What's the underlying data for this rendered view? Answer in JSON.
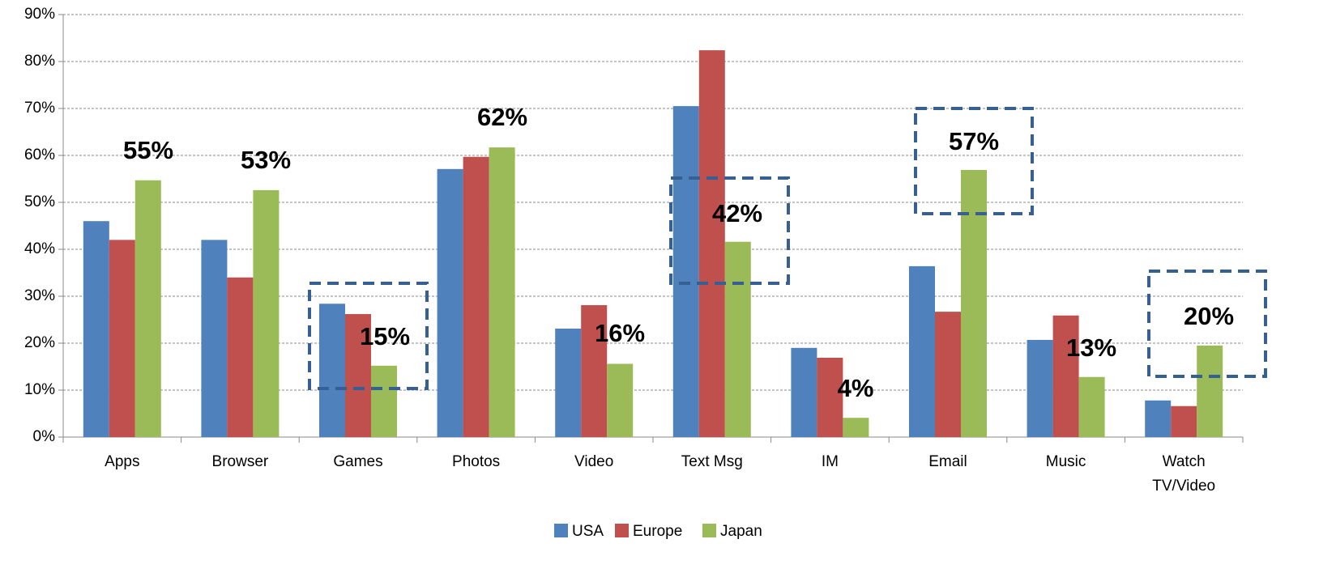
{
  "chart_data": {
    "type": "bar",
    "categories": [
      "Apps",
      "Browser",
      "Games",
      "Photos",
      "Video",
      "Text Msg",
      "IM",
      "Email",
      "Music",
      "Watch TV/Video"
    ],
    "series": [
      {
        "name": "USA",
        "color": "#4f81bd",
        "values": [
          46,
          42,
          28.4,
          57.1,
          23.1,
          70.5,
          19,
          36.4,
          20.7,
          7.8
        ]
      },
      {
        "name": "Europe",
        "color": "#c0504d",
        "values": [
          42,
          34,
          26.2,
          59.7,
          28.1,
          82.4,
          16.9,
          26.7,
          25.9,
          6.6
        ]
      },
      {
        "name": "Japan",
        "color": "#9bbb59",
        "values": [
          54.7,
          52.6,
          15.2,
          61.7,
          15.6,
          41.6,
          4.1,
          56.9,
          12.8,
          19.5
        ],
        "value_labels": [
          "55%",
          "53%",
          "15%",
          "62%",
          "16%",
          "42%",
          "4%",
          "57%",
          "13%",
          "20%"
        ]
      }
    ],
    "ylim": [
      0,
      90
    ],
    "yticks": [
      {
        "value": 0,
        "label": "0%"
      },
      {
        "value": 10,
        "label": "10%"
      },
      {
        "value": 20,
        "label": "20%"
      },
      {
        "value": 30,
        "label": "30%"
      },
      {
        "value": 40,
        "label": "40%"
      },
      {
        "value": 50,
        "label": "50%"
      },
      {
        "value": 60,
        "label": "60%"
      },
      {
        "value": 70,
        "label": "70%"
      },
      {
        "value": 80,
        "label": "80%"
      },
      {
        "value": 90,
        "label": "90%"
      }
    ],
    "grid": true,
    "legend": "bottom"
  }
}
